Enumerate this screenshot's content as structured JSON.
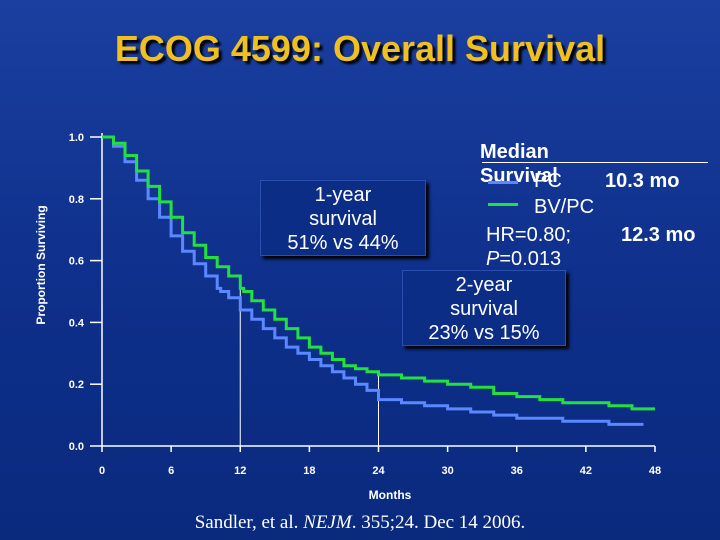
{
  "title": "ECOG 4599: Overall Survival",
  "colors": {
    "pc": "#5b87ff",
    "bvpc": "#22e040",
    "title": "#f0c020"
  },
  "median": {
    "header": "Median Survival",
    "pc_label": "PC",
    "pc_value": "10.3 mo",
    "bvpc_label": "BV/PC",
    "bvpc_value": "12.3 mo",
    "hr": "HR=0.80;",
    "p_italic": "P",
    "p_value": "=0.013"
  },
  "callout_1yr": {
    "line1": "1-year",
    "line2": "survival",
    "line3": "51% vs 44%"
  },
  "callout_2yr": {
    "line1": "2-year",
    "line2": "survival",
    "line3": "23% vs 15%"
  },
  "citation": {
    "author": "Sandler, et al. ",
    "journal": "NEJM",
    "rest": ". 355;24. Dec 14 2006."
  },
  "chart_data": {
    "type": "line",
    "title": "ECOG 4599: Overall Survival",
    "xlabel": "Months",
    "ylabel": "Proportion Surviving",
    "xlim": [
      0,
      48
    ],
    "ylim": [
      0,
      1.0
    ],
    "xticks": [
      0,
      6,
      12,
      18,
      24,
      30,
      36,
      42,
      48
    ],
    "yticks": [
      0.0,
      0.2,
      0.4,
      0.6,
      0.8,
      1.0
    ],
    "xtick_labels": [
      "0",
      "6",
      "12",
      "18",
      "24",
      "30",
      "36",
      "42",
      "48"
    ],
    "ytick_labels": [
      "0.0",
      "0.2",
      "0.4",
      "0.6",
      "0.8",
      "1.0"
    ],
    "series": [
      {
        "name": "PC",
        "x": [
          0,
          1,
          2,
          3,
          4,
          5,
          6,
          7,
          8,
          9,
          10,
          10.3,
          11,
          12,
          13,
          14,
          15,
          16,
          17,
          18,
          19,
          20,
          21,
          22,
          23,
          24,
          26,
          28,
          30,
          32,
          34,
          36,
          38,
          40,
          42,
          44,
          46,
          47
        ],
        "y": [
          1.0,
          0.97,
          0.92,
          0.86,
          0.8,
          0.74,
          0.68,
          0.63,
          0.59,
          0.55,
          0.51,
          0.5,
          0.48,
          0.44,
          0.41,
          0.38,
          0.35,
          0.32,
          0.3,
          0.28,
          0.26,
          0.24,
          0.22,
          0.2,
          0.18,
          0.15,
          0.14,
          0.13,
          0.12,
          0.11,
          0.1,
          0.09,
          0.09,
          0.08,
          0.08,
          0.07,
          0.07,
          0.07
        ]
      },
      {
        "name": "BV/PC",
        "x": [
          0,
          1,
          2,
          3,
          4,
          5,
          6,
          7,
          8,
          9,
          10,
          11,
          12,
          12.3,
          13,
          14,
          15,
          16,
          17,
          18,
          19,
          20,
          21,
          22,
          23,
          24,
          26,
          28,
          30,
          32,
          34,
          36,
          38,
          40,
          42,
          44,
          46,
          48
        ],
        "y": [
          1.0,
          0.98,
          0.94,
          0.89,
          0.84,
          0.79,
          0.74,
          0.69,
          0.65,
          0.61,
          0.58,
          0.55,
          0.51,
          0.5,
          0.47,
          0.44,
          0.41,
          0.38,
          0.35,
          0.32,
          0.3,
          0.28,
          0.26,
          0.25,
          0.24,
          0.23,
          0.22,
          0.21,
          0.2,
          0.19,
          0.17,
          0.16,
          0.15,
          0.14,
          0.14,
          0.13,
          0.12,
          0.12
        ]
      }
    ],
    "reference_lines": [
      {
        "x": 12,
        "y": 0.51
      },
      {
        "x": 24,
        "y": 0.23
      }
    ]
  }
}
